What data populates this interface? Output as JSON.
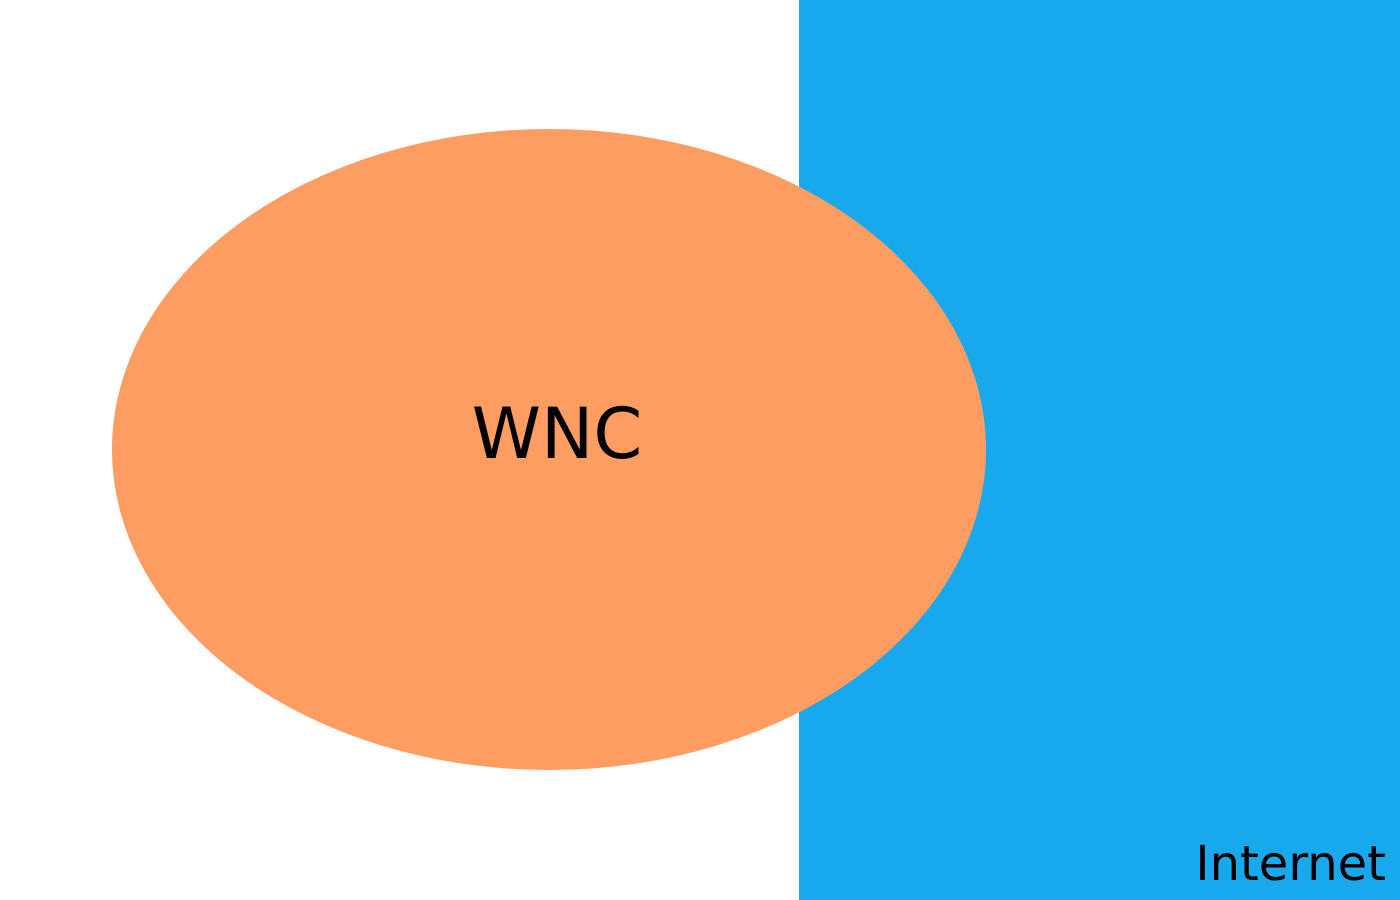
{
  "diagram": {
    "regions": [
      {
        "label": "WNC",
        "shape": "ellipse",
        "color": "#fd9d62"
      },
      {
        "label": "Internet",
        "shape": "rectangle",
        "color": "#18a8ec"
      }
    ],
    "background_color": "#ffffff"
  }
}
